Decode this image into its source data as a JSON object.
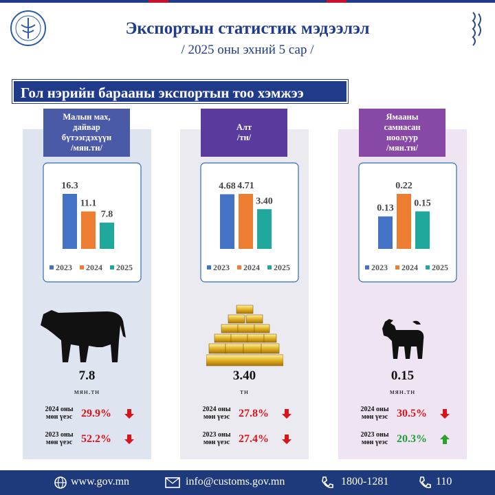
{
  "header": {
    "title": "Экспортын статистик мэдээлэл",
    "subtitle": "/ 2025 оны эхний 5 сар /"
  },
  "section_title": "Гол нэрийн барааны экспортын тоо хэмжээ",
  "chart_data": [
    {
      "type": "bar",
      "title": [
        "Малын мах,",
        "дайвар",
        "бүтээгдэхүүн",
        "/мян.тн/"
      ],
      "categories": [
        "2023",
        "2024",
        "2025"
      ],
      "values": [
        16.3,
        11.1,
        7.8
      ],
      "colors": [
        "#4472c4",
        "#ed7d31",
        "#1fa89b"
      ]
    },
    {
      "type": "bar",
      "title": [
        "Алт",
        "/тн/"
      ],
      "categories": [
        "2023",
        "2024",
        "2025"
      ],
      "values": [
        4.68,
        4.71,
        3.4
      ],
      "value_labels": [
        "4.68",
        "4.71",
        "3.40"
      ],
      "colors": [
        "#4472c4",
        "#ed7d31",
        "#1fa89b"
      ]
    },
    {
      "type": "bar",
      "title": [
        "Ямааны",
        "самнасан",
        "ноолуур",
        "/мян.тн/"
      ],
      "categories": [
        "2023",
        "2024",
        "2025"
      ],
      "values": [
        0.13,
        0.22,
        0.15
      ],
      "colors": [
        "#4472c4",
        "#ed7d31",
        "#1fa89b"
      ]
    }
  ],
  "panels": [
    {
      "unit": "мян.тн",
      "changes": [
        {
          "label": [
            "2024 оны",
            "мөн үеэс"
          ],
          "value": "29.9%",
          "direction": "down"
        },
        {
          "label": [
            "2023 оны",
            "мөн үеэс"
          ],
          "value": "52.2%",
          "direction": "down"
        }
      ]
    },
    {
      "unit": "тн",
      "changes": [
        {
          "label": [
            "2024 оны",
            "мөн үеэс"
          ],
          "value": "27.8%",
          "direction": "down"
        },
        {
          "label": [
            "2023 оны",
            "мөн үеэс"
          ],
          "value": "27.4%",
          "direction": "down"
        }
      ]
    },
    {
      "unit": "мян.тн",
      "changes": [
        {
          "label": [
            "2024 оны",
            "мөн үеэс"
          ],
          "value": "30.5%",
          "direction": "down"
        },
        {
          "label": [
            "2023 оны",
            "мөн үеэс"
          ],
          "value": "20.3%",
          "direction": "up"
        }
      ]
    }
  ],
  "footer": {
    "website": "www.gov.mn",
    "email": "info@customs.gov.mn",
    "phone": "1800-1281",
    "hotline": "110"
  }
}
